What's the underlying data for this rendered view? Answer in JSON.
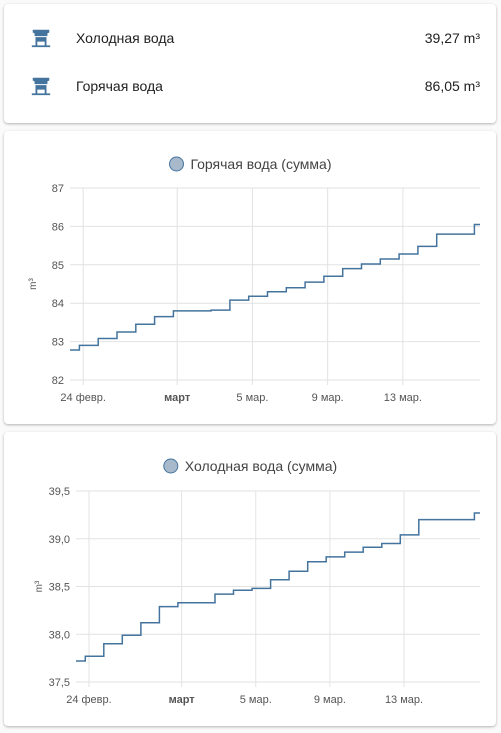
{
  "entities": [
    {
      "name": "Холодная вода",
      "value": "39,27 m³",
      "icon": "water-well-icon"
    },
    {
      "name": "Горячая вода",
      "value": "86,05 m³",
      "icon": "water-well-icon"
    }
  ],
  "colors": {
    "icon": "#44739e",
    "line": "#44739e",
    "legend_fill": "#a9b9cc",
    "grid": "#e2e2e2"
  },
  "chart_data": [
    {
      "type": "line",
      "legend": "Горячая вода (сумма)",
      "ylabel": "m³",
      "ylim": [
        82,
        87
      ],
      "yticks": [
        "82",
        "83",
        "84",
        "85",
        "86",
        "87"
      ],
      "xticks": [
        {
          "label": "24 февр.",
          "bold": false,
          "day": 0
        },
        {
          "label": "март",
          "bold": true,
          "day": 5
        },
        {
          "label": "5 мар.",
          "bold": false,
          "day": 9
        },
        {
          "label": "9 мар.",
          "bold": false,
          "day": 13
        },
        {
          "label": "13 мар.",
          "bold": false,
          "day": 17
        }
      ],
      "xlim": [
        -0.7,
        21.1
      ],
      "x": [
        -0.7,
        -0.2,
        0.8,
        1.8,
        2.8,
        3.8,
        4.8,
        5.8,
        6.8,
        7.8,
        8.8,
        9.8,
        10.8,
        11.8,
        12.8,
        13.8,
        14.8,
        15.8,
        16.8,
        17.8,
        18.8,
        20.8,
        21.1
      ],
      "y": [
        82.78,
        82.9,
        83.08,
        83.25,
        83.45,
        83.65,
        83.8,
        83.8,
        83.82,
        84.08,
        84.18,
        84.3,
        84.4,
        84.55,
        84.7,
        84.9,
        85.02,
        85.15,
        85.28,
        85.48,
        85.8,
        86.05,
        86.05
      ]
    },
    {
      "type": "line",
      "legend": "Холодная вода (сумма)",
      "ylabel": "m³",
      "ylim": [
        37.5,
        39.5
      ],
      "yticks": [
        "37,5",
        "38,0",
        "38,5",
        "39,0",
        "39,5"
      ],
      "xticks": [
        {
          "label": "24 февр.",
          "bold": false,
          "day": 0
        },
        {
          "label": "март",
          "bold": true,
          "day": 5
        },
        {
          "label": "5 мар.",
          "bold": false,
          "day": 9
        },
        {
          "label": "9 мар.",
          "bold": false,
          "day": 13
        },
        {
          "label": "13 мар.",
          "bold": false,
          "day": 17
        }
      ],
      "xlim": [
        -0.7,
        21.1
      ],
      "x": [
        -0.7,
        -0.2,
        0.8,
        1.8,
        2.8,
        3.8,
        4.8,
        5.8,
        6.8,
        7.8,
        8.8,
        9.8,
        10.8,
        11.8,
        12.8,
        13.8,
        14.8,
        15.8,
        16.8,
        17.8,
        18.8,
        20.8,
        21.1
      ],
      "y": [
        37.72,
        37.77,
        37.9,
        37.99,
        38.12,
        38.29,
        38.33,
        38.33,
        38.42,
        38.46,
        38.48,
        38.57,
        38.66,
        38.76,
        38.81,
        38.86,
        38.91,
        38.95,
        39.04,
        39.2,
        39.2,
        39.27,
        39.27
      ]
    }
  ]
}
